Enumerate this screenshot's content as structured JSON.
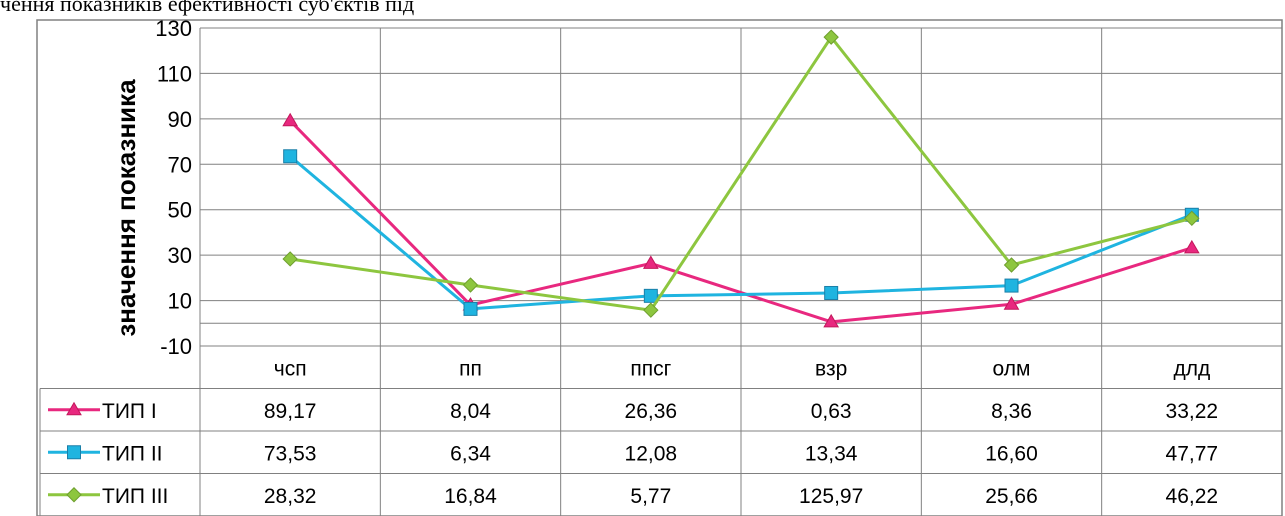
{
  "caption": "чення показників ефективності суб'єктів під",
  "chart_data": {
    "type": "line",
    "title": "",
    "xlabel": "",
    "ylabel": "значення показника",
    "ylim": [
      -10,
      130
    ],
    "yticks": [
      -10,
      10,
      30,
      50,
      70,
      90,
      110,
      130
    ],
    "categories": [
      "чсп",
      "пп",
      "ппсг",
      "взр",
      "олм",
      "длд"
    ],
    "grid": true,
    "legend": "data-table-left",
    "series": [
      {
        "name": "ТИП І",
        "color": "#E8287F",
        "marker": "triangle",
        "values": [
          89.17,
          8.04,
          26.36,
          0.63,
          8.36,
          33.22
        ],
        "labels": [
          "89,17",
          "8,04",
          "26,36",
          "0,63",
          "8,36",
          "33,22"
        ]
      },
      {
        "name": "ТИП ІІ",
        "color": "#1FB4E0",
        "marker": "square",
        "values": [
          73.53,
          6.34,
          12.08,
          13.34,
          16.6,
          47.77
        ],
        "labels": [
          "73,53",
          "6,34",
          "12,08",
          "13,34",
          "16,60",
          "47,77"
        ]
      },
      {
        "name": "ТИП ІІІ",
        "color": "#8DC63F",
        "marker": "diamond",
        "values": [
          28.32,
          16.84,
          5.77,
          125.97,
          25.66,
          46.22
        ],
        "labels": [
          "28,32",
          "16,84",
          "5,77",
          "125,97",
          "25,66",
          "46,22"
        ]
      }
    ]
  }
}
